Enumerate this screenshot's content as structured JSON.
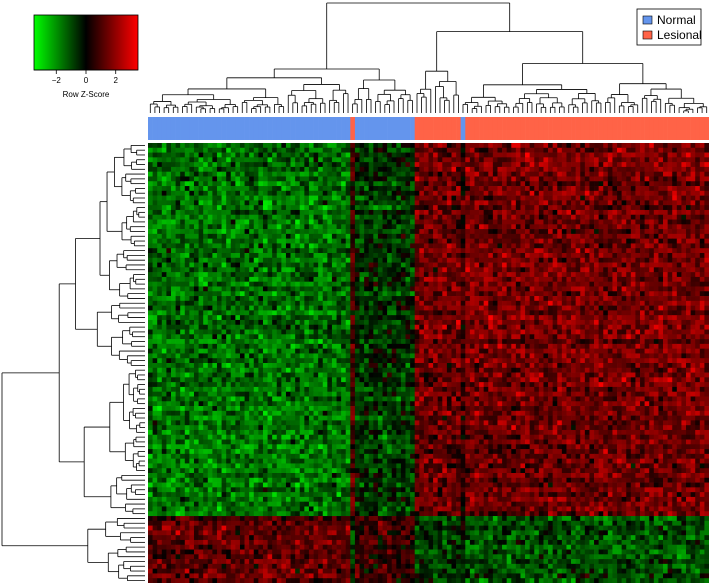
{
  "chart_data": {
    "type": "heatmap",
    "title": "",
    "xlabel": "",
    "ylabel": "",
    "color_key": {
      "title": "Row Z-Score",
      "range": [
        -3.5,
        3.5
      ],
      "tick_values": [
        -2,
        0,
        2
      ],
      "tick_labels": [
        "−2",
        "0",
        "2"
      ],
      "colors": {
        "low": "#00ff00",
        "mid": "#000000",
        "high": "#ff0000"
      }
    },
    "legend": {
      "placement": "top-right",
      "entries": [
        {
          "label": "Normal",
          "color": "#6495ed"
        },
        {
          "label": "Lesional",
          "color": "#ff6347"
        }
      ]
    },
    "column_groups": [
      {
        "group": "Normal",
        "count": 44
      },
      {
        "group": "Lesional",
        "count": 1
      },
      {
        "group": "Normal",
        "count": 13
      },
      {
        "group": "Lesional",
        "count": 10
      },
      {
        "group": "Normal",
        "count": 1
      },
      {
        "group": "Lesional",
        "count": 53
      }
    ],
    "row_blocks": [
      {
        "rows": 78,
        "values_by_column_group": [
          -1.3,
          0.9,
          -0.6,
          1.2,
          0.5,
          1.3
        ]
      },
      {
        "rows": 14,
        "values_by_column_group": [
          1.1,
          -0.8,
          0.6,
          -0.6,
          -0.4,
          -0.9
        ]
      }
    ],
    "n_columns": 122,
    "n_rows": 92,
    "column_dendrogram": true,
    "row_dendrogram": true
  }
}
